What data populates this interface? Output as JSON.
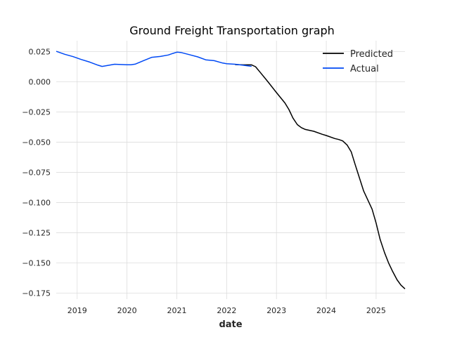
{
  "chart_data": {
    "type": "line",
    "title": "Ground Freight Transportation graph",
    "xlabel": "date",
    "ylabel": "",
    "xlim": [
      2018.58,
      2025.58
    ],
    "ylim": [
      -0.18,
      0.034
    ],
    "x_ticks": [
      2019,
      2020,
      2021,
      2022,
      2023,
      2024,
      2025
    ],
    "y_ticks": [
      0.025,
      0.0,
      -0.025,
      -0.05,
      -0.075,
      -0.1,
      -0.125,
      -0.15,
      -0.175
    ],
    "y_tick_labels": [
      "0.025",
      "0.000",
      "−0.025",
      "−0.050",
      "−0.075",
      "−0.100",
      "−0.125",
      "−0.150",
      "−0.175"
    ],
    "grid": true,
    "legend_position": "top-right",
    "series": [
      {
        "name": "Predicted",
        "color": "#000000",
        "x": [
          2022.17,
          2022.33,
          2022.5,
          2022.58,
          2022.67,
          2022.83,
          2023.0,
          2023.17,
          2023.25,
          2023.33,
          2023.42,
          2023.5,
          2023.58,
          2023.75,
          2023.92,
          2024.0,
          2024.17,
          2024.25,
          2024.33,
          2024.42,
          2024.5,
          2024.58,
          2024.75,
          2024.92,
          2025.0,
          2025.08,
          2025.17,
          2025.25,
          2025.33,
          2025.42,
          2025.5,
          2025.58
        ],
        "values": [
          0.0142,
          0.014,
          0.014,
          0.0125,
          0.008,
          0.0,
          -0.009,
          -0.0175,
          -0.023,
          -0.03,
          -0.0355,
          -0.038,
          -0.0395,
          -0.041,
          -0.0435,
          -0.0445,
          -0.047,
          -0.0478,
          -0.049,
          -0.0525,
          -0.058,
          -0.0685,
          -0.0905,
          -0.1055,
          -0.117,
          -0.1305,
          -0.1415,
          -0.15,
          -0.157,
          -0.164,
          -0.1685,
          -0.1715
        ]
      },
      {
        "name": "Actual",
        "color": "#0049f5",
        "x": [
          2018.58,
          2018.75,
          2018.92,
          2019.08,
          2019.25,
          2019.42,
          2019.5,
          2019.58,
          2019.75,
          2019.92,
          2020.0,
          2020.08,
          2020.17,
          2020.33,
          2020.5,
          2020.67,
          2020.83,
          2020.92,
          2021.0,
          2021.08,
          2021.25,
          2021.42,
          2021.58,
          2021.75,
          2021.92,
          2022.0,
          2022.17,
          2022.33,
          2022.5
        ],
        "values": [
          0.0252,
          0.0228,
          0.0208,
          0.0185,
          0.0163,
          0.0137,
          0.0127,
          0.0133,
          0.0145,
          0.0142,
          0.0141,
          0.0141,
          0.0147,
          0.0175,
          0.0203,
          0.021,
          0.0222,
          0.0235,
          0.0245,
          0.0243,
          0.0225,
          0.0206,
          0.0182,
          0.0175,
          0.0155,
          0.015,
          0.0145,
          0.0137,
          0.0128
        ]
      }
    ]
  }
}
